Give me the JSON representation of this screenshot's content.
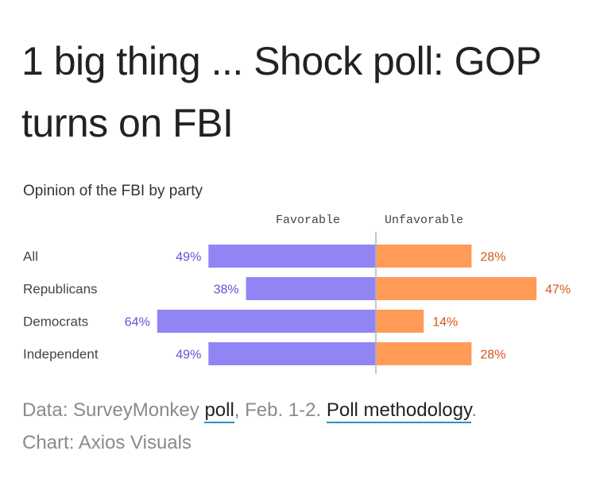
{
  "headline": "1 big thing ... Shock poll: GOP turns on FBI",
  "chart_data": {
    "type": "bar",
    "orientation": "diverging-horizontal",
    "title": "Opinion of the FBI by party",
    "categories": [
      "All",
      "Republicans",
      "Democrats",
      "Independent"
    ],
    "series": [
      {
        "name": "Favorable",
        "values": [
          49,
          38,
          64,
          49
        ],
        "color": "#9184f5",
        "label_color": "#6a4fd6",
        "direction": "left"
      },
      {
        "name": "Unfavorable",
        "values": [
          28,
          47,
          14,
          28
        ],
        "color": "#ff9a57",
        "label_color": "#d4561a",
        "direction": "right"
      }
    ],
    "value_format": "{v}%",
    "xlabel": "",
    "ylabel": "",
    "grid": false,
    "legend": "top-center"
  },
  "source": {
    "prefix": "Data: SurveyMonkey ",
    "link1": "poll",
    "middle": ", Feb. 1-2. ",
    "link2": "Poll methodology",
    "suffix": ".",
    "credit": "Chart: Axios Visuals"
  }
}
